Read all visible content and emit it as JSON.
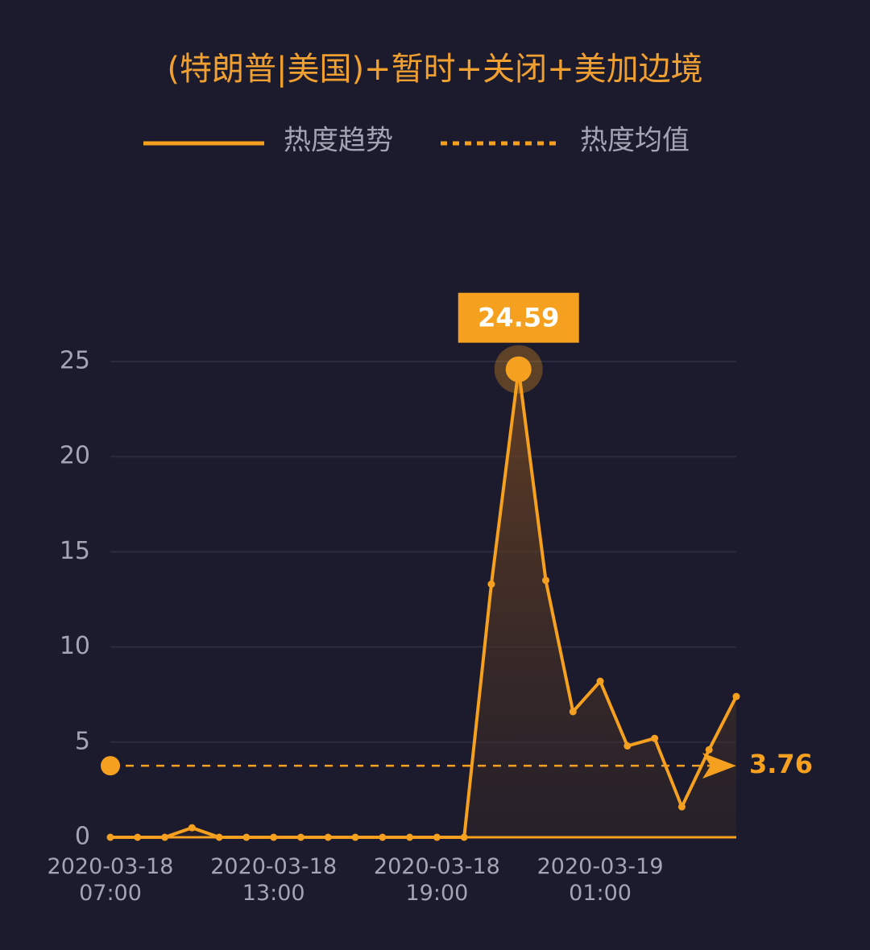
{
  "chart_data": {
    "type": "line",
    "title": "(特朗普|美国)+暂时+关闭+美加边境",
    "categories": [
      "2020-03-18\n07:00",
      null,
      null,
      null,
      null,
      null,
      "2020-03-18\n13:00",
      null,
      null,
      null,
      null,
      null,
      "2020-03-18\n19:00",
      null,
      null,
      null,
      null,
      null,
      "2020-03-19\n01:00",
      null,
      null,
      null,
      null,
      null
    ],
    "series": [
      {
        "name": "热度趋势",
        "color": "#f5a01e",
        "values": [
          0,
          0,
          0,
          0.5,
          0,
          0,
          0,
          0,
          0,
          0,
          0,
          0,
          0,
          0,
          13.3,
          24.59,
          13.5,
          6.6,
          8.2,
          4.8,
          5.2,
          1.6,
          4.6,
          7.4
        ],
        "value_labels": [
          null,
          null,
          null,
          null,
          null,
          null,
          null,
          null,
          null,
          null,
          null,
          null,
          null,
          null,
          null,
          "24.59",
          null,
          null,
          null,
          null,
          null,
          null,
          null,
          null
        ]
      }
    ],
    "mean": {
      "name": "热度均值",
      "value": 3.76
    },
    "ylim": [
      0,
      25
    ],
    "yticks": [
      0,
      5,
      10,
      15,
      20,
      25
    ],
    "grid": true
  }
}
